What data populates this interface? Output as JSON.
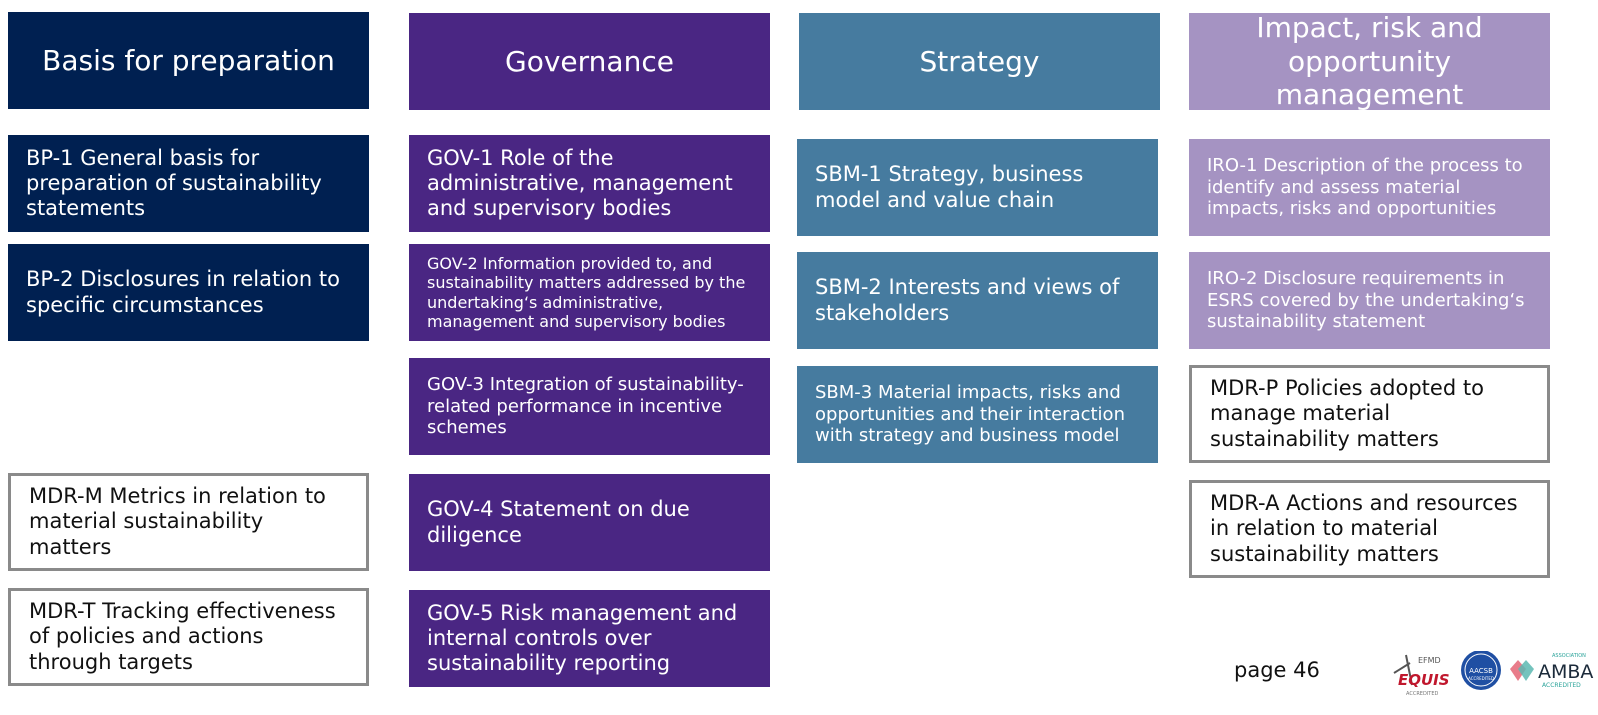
{
  "columns": {
    "basis": {
      "header": "Basis for preparation",
      "items": [
        "BP-1 General basis for preparation of sustainability statements",
        "BP-2 Disclosures in relation to specific circumstances",
        "MDR-M Metrics in relation to material sustainability matters",
        "MDR-T Tracking effectiveness of policies and actions through targets"
      ]
    },
    "governance": {
      "header": "Governance",
      "items": [
        "GOV-1 Role of the administrative, management and supervisory bodies",
        "GOV-2 Information provided to, and sustainability matters addressed by the undertaking‘s administrative, management and supervisory bodies",
        "GOV-3 Integration of sustainability-related performance in incentive schemes",
        "GOV-4 Statement on due diligence",
        "GOV-5 Risk management and internal controls over sustainability reporting"
      ]
    },
    "strategy": {
      "header": "Strategy",
      "items": [
        "SBM-1 Strategy, business model and value chain",
        "SBM-2 Interests and views of stakeholders",
        "SBM-3 Material impacts, risks and opportunities and their interaction with strategy and business model"
      ]
    },
    "iro": {
      "header": "Impact, risk and opportunity management",
      "items": [
        "IRO-1 Description of the process to identify and assess material impacts, risks and opportunities",
        "IRO-2 Disclosure requirements in ESRS covered by the undertaking‘s sustainability statement",
        "MDR-P Policies adopted to manage material sustainability matters",
        "MDR-A Actions and resources in relation to material sustainability matters"
      ]
    }
  },
  "footer": {
    "page_label": "page 46",
    "logos": {
      "efmd": "EFMD",
      "equis": "EQUIS",
      "equis_sub": "ACCREDITED",
      "aacsb": "AACSB",
      "aacsb_sub": "ACCREDITED",
      "amba_top": "ASSOCIATION",
      "amba": "AMBA",
      "amba_sub": "ACCREDITED"
    }
  },
  "colors": {
    "navy": "#002051",
    "purple": "#4a2683",
    "steel_blue": "#467b9f",
    "lilac": "#a593c2",
    "outline_border": "#8a8a8a"
  }
}
